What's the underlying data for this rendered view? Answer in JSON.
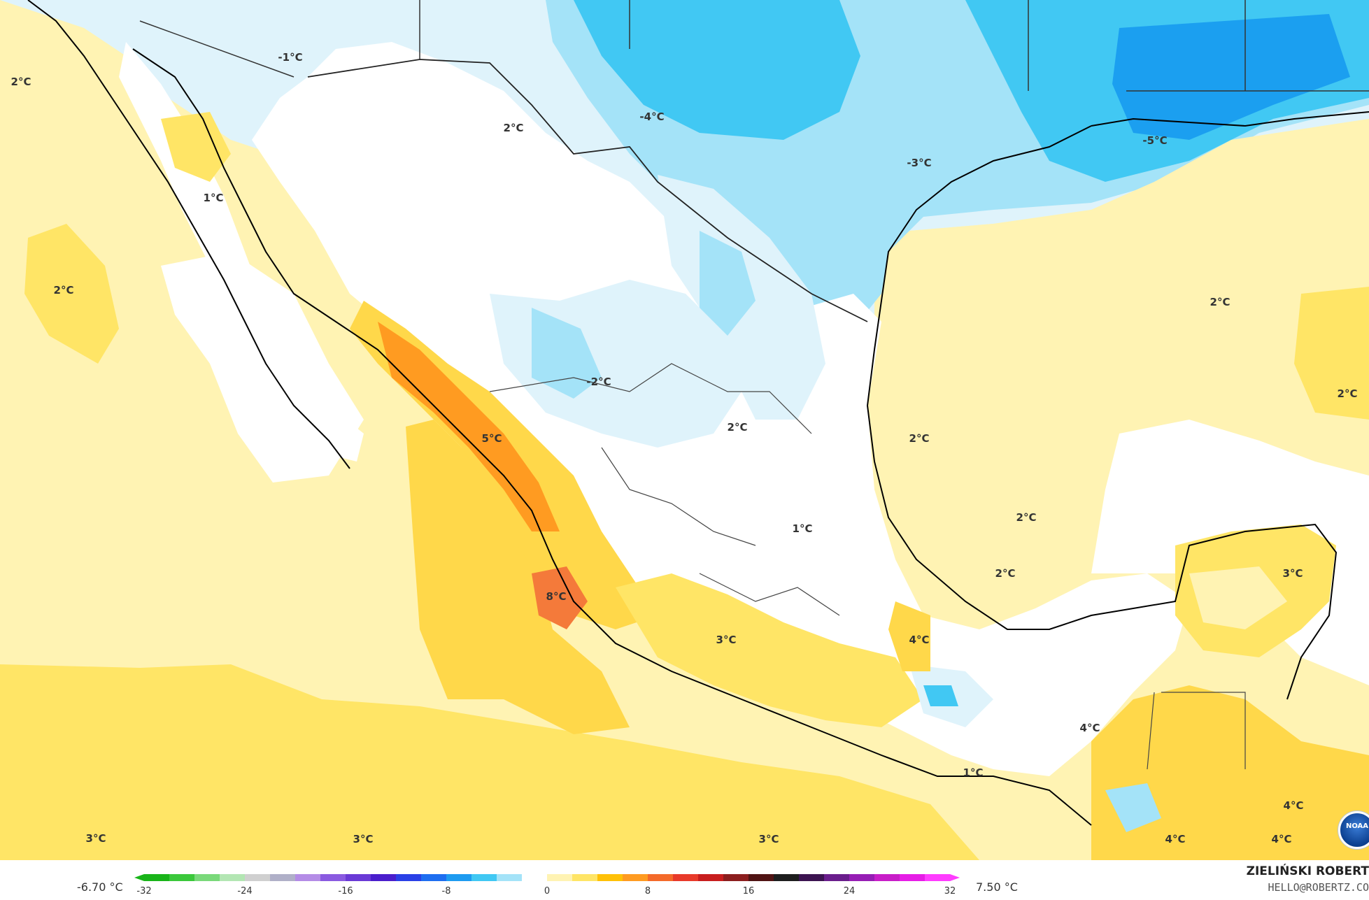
{
  "map": {
    "labels": [
      {
        "text": "-1°C"
      },
      {
        "text": "2°C"
      },
      {
        "text": "-4°C"
      },
      {
        "text": "-3°C"
      },
      {
        "text": "-5°C"
      },
      {
        "text": "2°C"
      },
      {
        "text": "1°C"
      },
      {
        "text": "2°C"
      },
      {
        "text": "2°C"
      },
      {
        "text": "2°C"
      },
      {
        "text": "-2°C"
      },
      {
        "text": "5°C"
      },
      {
        "text": "2°C"
      },
      {
        "text": "2°C"
      },
      {
        "text": "2°C"
      },
      {
        "text": "1°C"
      },
      {
        "text": "2°C"
      },
      {
        "text": "3°C"
      },
      {
        "text": "8°C"
      },
      {
        "text": "3°C"
      },
      {
        "text": "4°C"
      },
      {
        "text": "4°C"
      },
      {
        "text": "1°C"
      },
      {
        "text": "3°C"
      },
      {
        "text": "3°C"
      },
      {
        "text": "3°C"
      },
      {
        "text": "4°C"
      },
      {
        "text": "4°C"
      },
      {
        "text": "4°C"
      }
    ],
    "colors": {
      "sea_warm": "#ffe566",
      "land_light_yellow": "#fff3b3",
      "orange": "#ffc107",
      "deep_orange": "#ff9b21",
      "hot": "#f47a3a",
      "light_blue": "#dff3fb",
      "mid_blue": "#a4e3f8",
      "blue": "#41c8f3",
      "dark_blue": "#1b9ff0"
    }
  },
  "legend": {
    "min_label": "-6.70 °C",
    "max_label": "7.50 °C",
    "ticks": [
      "-32",
      "-24",
      "-16",
      "-8",
      "0",
      "8",
      "16",
      "24",
      "32"
    ],
    "colors": [
      "#19b419",
      "#3bc83b",
      "#7ad97a",
      "#b3e6b3",
      "#d0d0d0",
      "#b0b0c8",
      "#b48ce6",
      "#8a5ae0",
      "#6a3ad6",
      "#4a1ecc",
      "#2a40e6",
      "#1e6ef0",
      "#1e9bf0",
      "#41c8f3",
      "#a4e3f8",
      "#ffffff",
      "#fff3b3",
      "#ffe566",
      "#ffc107",
      "#ff9b21",
      "#f46a2a",
      "#e83a2a",
      "#c81e1e",
      "#8c1e1e",
      "#501414",
      "#1e1e1e",
      "#3c1450",
      "#6a1e8c",
      "#961eb4",
      "#c81ec8",
      "#e61ee6",
      "#ff3cff"
    ]
  },
  "credit": {
    "name": "ZIELIŃSKI ROBERT",
    "email": "HELLO@ROBERTZ.CO"
  },
  "logo": {
    "text": "NOAA"
  }
}
